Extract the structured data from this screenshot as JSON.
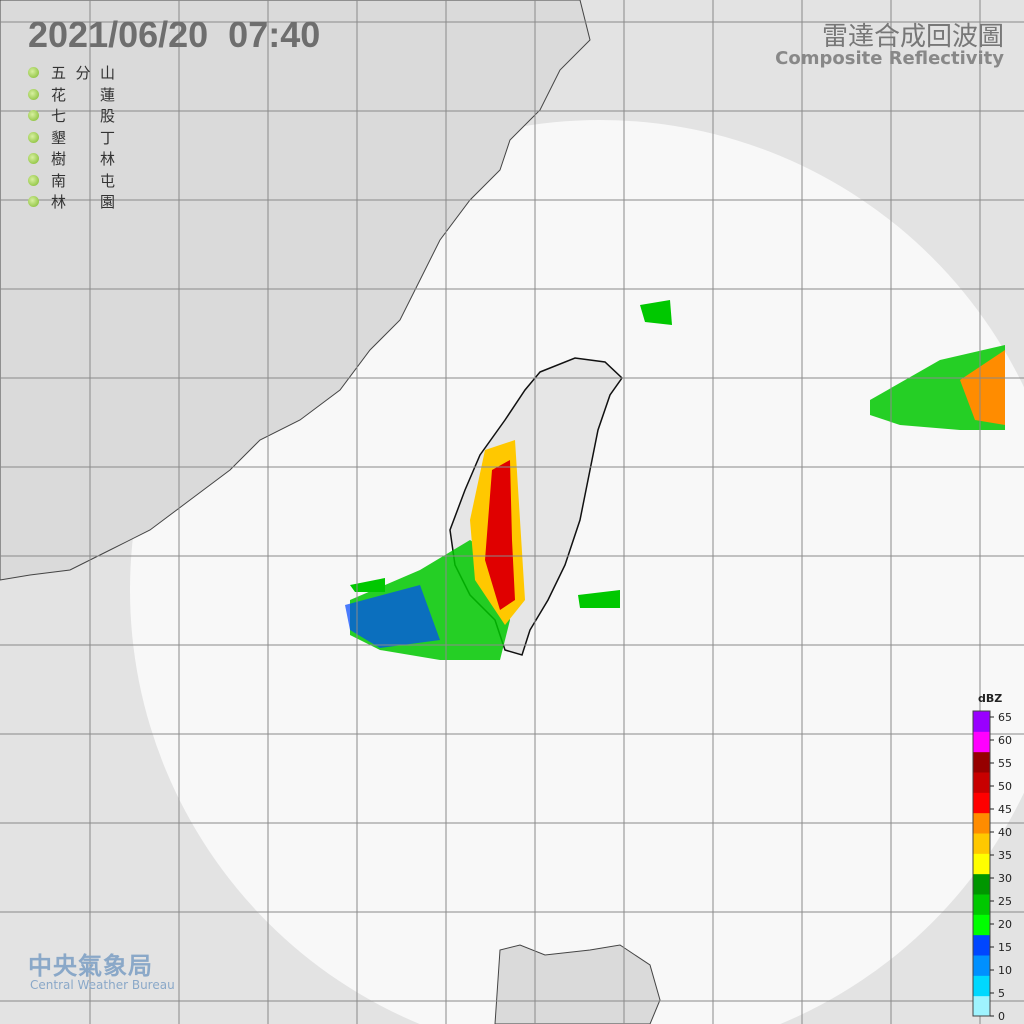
{
  "header": {
    "timestamp": "2021/06/20  07:40",
    "title": "雷達合成回波圖",
    "subtitle": "Composite Reflectivity"
  },
  "stations": [
    "五分山",
    "花蓮",
    "七股",
    "墾丁",
    "樹林",
    "南屯",
    "林園"
  ],
  "legend": {
    "unit": "dBZ",
    "ticks": [
      0,
      5,
      10,
      15,
      20,
      25,
      30,
      35,
      40,
      45,
      50,
      55,
      60,
      65
    ],
    "colors": [
      "#9ff4ff",
      "#00d8ff",
      "#0090ff",
      "#0046ff",
      "#00ff00",
      "#00c800",
      "#009600",
      "#ffff00",
      "#ffc800",
      "#ff8c00",
      "#ff0000",
      "#c80000",
      "#960000",
      "#ff00ff",
      "#9900ff"
    ]
  },
  "logo": {
    "name": "中央氣象局",
    "english": "Central Weather Bureau"
  }
}
